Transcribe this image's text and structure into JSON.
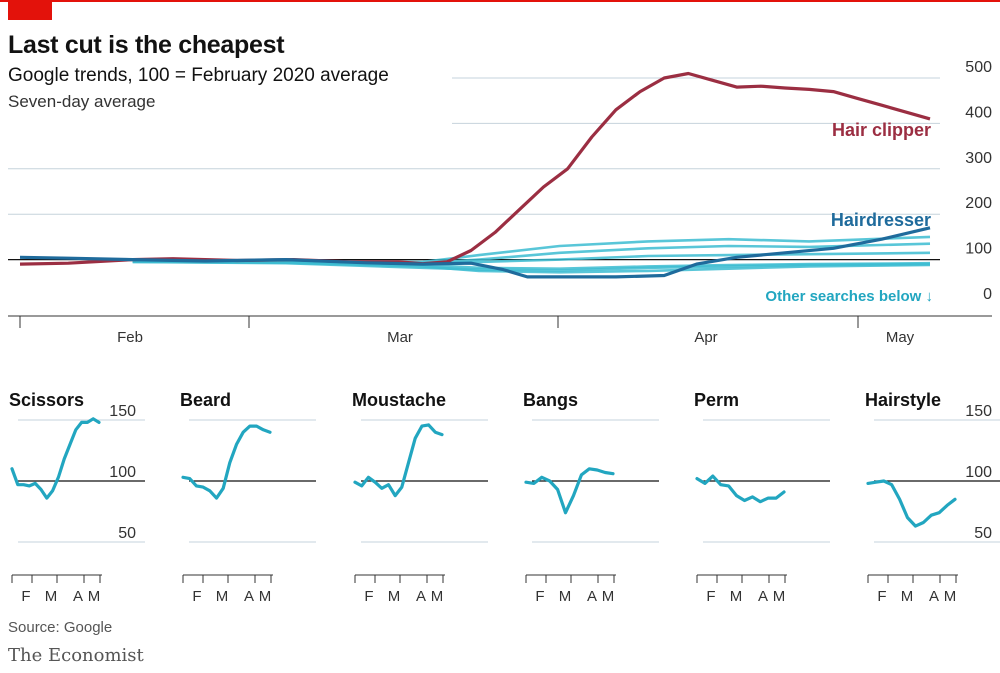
{
  "header": {
    "title": "Last cut is the cheapest",
    "subtitle": "Google trends, 100 = February 2020 average",
    "note": "Seven-day average"
  },
  "footer": {
    "source": "Source: Google",
    "brand": "The Economist"
  },
  "colors": {
    "accent": "#e3120b",
    "hair_clipper": "#9b2e42",
    "hairdresser": "#1f6b9c",
    "other": "#3cbcd1",
    "small": "#22a6c0",
    "grid": "#c6d3dc",
    "baseline": "#121212"
  },
  "chart_data": [
    {
      "type": "line",
      "ylim": [
        0,
        500
      ],
      "ytick_labels": [
        "0",
        "100",
        "200",
        "300",
        "400",
        "500"
      ],
      "yticks": [
        0,
        100,
        200,
        300,
        400,
        500
      ],
      "xtick_labels": [
        "Feb",
        "Mar",
        "Apr",
        "May"
      ],
      "series": [
        {
          "name": "Hair clipper",
          "x": [
            "2020-01-18",
            "2020-01-24",
            "2020-02-01",
            "2020-02-06",
            "2020-02-14",
            "2020-02-21",
            "2020-02-28",
            "2020-03-05",
            "2020-03-08",
            "2020-03-11",
            "2020-03-14",
            "2020-03-17",
            "2020-03-20",
            "2020-03-23",
            "2020-03-26",
            "2020-03-29",
            "2020-04-01",
            "2020-04-04",
            "2020-04-07",
            "2020-04-10",
            "2020-04-13",
            "2020-04-16",
            "2020-04-19",
            "2020-04-22",
            "2020-04-25",
            "2020-04-28",
            "2020-05-01",
            "2020-05-04",
            "2020-05-07",
            "2020-05-10"
          ],
          "values": [
            90,
            92,
            100,
            102,
            98,
            100,
            95,
            95,
            91,
            95,
            120,
            160,
            210,
            260,
            300,
            370,
            430,
            470,
            500,
            510,
            495,
            480,
            482,
            478,
            475,
            470,
            455,
            440,
            425,
            410
          ]
        },
        {
          "name": "Hairdresser",
          "x": [
            "2020-01-18",
            "2020-01-24",
            "2020-02-01",
            "2020-02-10",
            "2020-02-20",
            "2020-03-01",
            "2020-03-08",
            "2020-03-14",
            "2020-03-18",
            "2020-03-21",
            "2020-03-25",
            "2020-04-01",
            "2020-04-07",
            "2020-04-11",
            "2020-04-16",
            "2020-04-22",
            "2020-04-28",
            "2020-05-04",
            "2020-05-10"
          ],
          "values": [
            105,
            103,
            100,
            97,
            100,
            93,
            90,
            92,
            78,
            62,
            62,
            62,
            65,
            90,
            105,
            115,
            125,
            145,
            170
          ]
        },
        {
          "name": "Other searches below ↓",
          "lines": [
            {
              "x": [
                "2020-02-01",
                "2020-02-20",
                "2020-03-08",
                "2020-03-15",
                "2020-03-25",
                "2020-04-05",
                "2020-04-15",
                "2020-04-25",
                "2020-05-10"
              ],
              "values": [
                98,
                96,
                95,
                110,
                130,
                140,
                145,
                140,
                150
              ]
            },
            {
              "x": [
                "2020-02-01",
                "2020-02-20",
                "2020-03-08",
                "2020-03-15",
                "2020-03-25",
                "2020-04-05",
                "2020-04-15",
                "2020-04-25",
                "2020-05-10"
              ],
              "values": [
                97,
                96,
                92,
                100,
                115,
                125,
                130,
                128,
                135
              ]
            },
            {
              "x": [
                "2020-02-01",
                "2020-02-20",
                "2020-03-08",
                "2020-03-15",
                "2020-03-25",
                "2020-04-05",
                "2020-04-15",
                "2020-04-25",
                "2020-05-10"
              ],
              "values": [
                96,
                95,
                90,
                95,
                100,
                108,
                110,
                112,
                115
              ]
            },
            {
              "x": [
                "2020-02-01",
                "2020-02-20",
                "2020-03-08",
                "2020-03-15",
                "2020-03-25",
                "2020-04-05",
                "2020-04-15",
                "2020-04-25",
                "2020-05-10"
              ],
              "values": [
                96,
                94,
                88,
                82,
                80,
                85,
                88,
                90,
                92
              ]
            },
            {
              "x": [
                "2020-02-01",
                "2020-02-20",
                "2020-03-08",
                "2020-03-15",
                "2020-03-25",
                "2020-04-05",
                "2020-04-15",
                "2020-04-25",
                "2020-05-10"
              ],
              "values": [
                95,
                93,
                85,
                75,
                72,
                75,
                80,
                85,
                88
              ]
            },
            {
              "x": [
                "2020-02-01",
                "2020-02-20",
                "2020-03-08",
                "2020-03-15",
                "2020-03-25",
                "2020-04-05",
                "2020-04-15",
                "2020-04-25",
                "2020-05-10"
              ],
              "values": [
                95,
                92,
                82,
                78,
                76,
                82,
                85,
                88,
                90
              ]
            }
          ]
        }
      ]
    },
    {
      "type": "line",
      "title": "Scissors",
      "ylim": [
        50,
        150
      ],
      "ytick_labels": [
        "150",
        "100",
        "50"
      ],
      "xtick_labels": [
        "F",
        "M",
        "A",
        "M"
      ],
      "series": [
        {
          "values": [
            110,
            97,
            97,
            96,
            98,
            93,
            86,
            92,
            103,
            118,
            130,
            142,
            148,
            148,
            151,
            148
          ]
        }
      ]
    },
    {
      "type": "line",
      "title": "Beard",
      "ylim": [
        50,
        150
      ],
      "xtick_labels": [
        "F",
        "M",
        "A",
        "M"
      ],
      "series": [
        {
          "values": [
            103,
            102,
            96,
            95,
            92,
            86,
            94,
            115,
            130,
            140,
            145,
            145,
            142,
            140
          ]
        }
      ]
    },
    {
      "type": "line",
      "title": "Moustache",
      "ylim": [
        50,
        150
      ],
      "xtick_labels": [
        "F",
        "M",
        "A",
        "M"
      ],
      "series": [
        {
          "values": [
            99,
            96,
            103,
            99,
            94,
            97,
            88,
            95,
            115,
            135,
            145,
            146,
            140,
            138
          ]
        }
      ]
    },
    {
      "type": "line",
      "title": "Bangs",
      "ylim": [
        50,
        150
      ],
      "xtick_labels": [
        "F",
        "M",
        "A",
        "M"
      ],
      "series": [
        {
          "values": [
            99,
            98,
            103,
            100,
            93,
            74,
            88,
            105,
            110,
            109,
            107,
            106
          ]
        }
      ]
    },
    {
      "type": "line",
      "title": "Perm",
      "ylim": [
        50,
        150
      ],
      "xtick_labels": [
        "F",
        "M",
        "A",
        "M"
      ],
      "series": [
        {
          "values": [
            102,
            98,
            104,
            97,
            96,
            88,
            84,
            87,
            83,
            86,
            86,
            91
          ]
        }
      ]
    },
    {
      "type": "line",
      "title": "Hairstyle",
      "ylim": [
        50,
        150
      ],
      "ytick_labels": [
        "150",
        "100",
        "50"
      ],
      "xtick_labels": [
        "F",
        "M",
        "A",
        "M"
      ],
      "series": [
        {
          "values": [
            98,
            99,
            100,
            97,
            85,
            70,
            63,
            66,
            72,
            74,
            80,
            85
          ]
        }
      ]
    }
  ]
}
